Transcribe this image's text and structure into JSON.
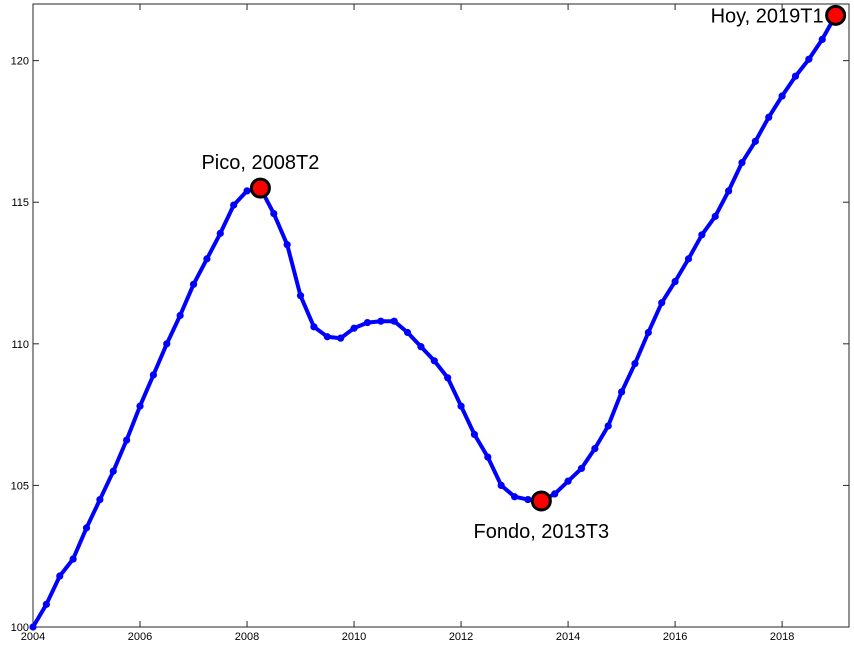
{
  "chart_data": {
    "type": "line",
    "title": "",
    "xlabel": "",
    "ylabel": "",
    "xlim": [
      2004,
      2019.25
    ],
    "ylim": [
      100,
      122
    ],
    "grid": false,
    "legend": "none",
    "x_ticks": [
      "2004",
      "2006",
      "2008",
      "2010",
      "2012",
      "2014",
      "2016",
      "2018"
    ],
    "y_ticks": [
      "100",
      "105",
      "110",
      "115",
      "120"
    ],
    "series": [
      {
        "color": "#0000ff",
        "x": [
          2004.0,
          2004.25,
          2004.5,
          2004.75,
          2005.0,
          2005.25,
          2005.5,
          2005.75,
          2006.0,
          2006.25,
          2006.5,
          2006.75,
          2007.0,
          2007.25,
          2007.5,
          2007.75,
          2008.0,
          2008.25,
          2008.5,
          2008.75,
          2009.0,
          2009.25,
          2009.5,
          2009.75,
          2010.0,
          2010.25,
          2010.5,
          2010.75,
          2011.0,
          2011.25,
          2011.5,
          2011.75,
          2012.0,
          2012.25,
          2012.5,
          2012.75,
          2013.0,
          2013.25,
          2013.5,
          2013.75,
          2014.0,
          2014.25,
          2014.5,
          2014.75,
          2015.0,
          2015.25,
          2015.5,
          2015.75,
          2016.0,
          2016.25,
          2016.5,
          2016.75,
          2017.0,
          2017.25,
          2017.5,
          2017.75,
          2018.0,
          2018.25,
          2018.5,
          2018.75,
          2019.0
        ],
        "y": [
          100.0,
          100.8,
          101.8,
          102.4,
          103.5,
          104.5,
          105.5,
          106.6,
          107.8,
          108.9,
          110.0,
          111.0,
          112.1,
          113.0,
          113.9,
          114.9,
          115.4,
          115.5,
          114.6,
          113.5,
          111.7,
          110.6,
          110.25,
          110.2,
          110.55,
          110.75,
          110.8,
          110.8,
          110.4,
          109.9,
          109.4,
          108.8,
          107.8,
          106.8,
          106.0,
          105.0,
          104.6,
          104.5,
          104.45,
          104.7,
          105.15,
          105.6,
          106.3,
          107.1,
          108.3,
          109.3,
          110.4,
          111.45,
          112.2,
          113.0,
          113.85,
          114.5,
          115.4,
          116.4,
          117.15,
          118.0,
          118.75,
          119.45,
          120.05,
          120.75,
          121.6
        ]
      }
    ],
    "highlights": [
      {
        "x": 2008.25,
        "y": 115.5,
        "label": "Pico, 2008T2",
        "label_pos": "above"
      },
      {
        "x": 2013.5,
        "y": 104.45,
        "label": "Fondo, 2013T3",
        "label_pos": "below"
      },
      {
        "x": 2019.0,
        "y": 121.6,
        "label": "Hoy, 2019T1",
        "label_pos": "left"
      }
    ],
    "highlight_color": "#ff0000"
  }
}
